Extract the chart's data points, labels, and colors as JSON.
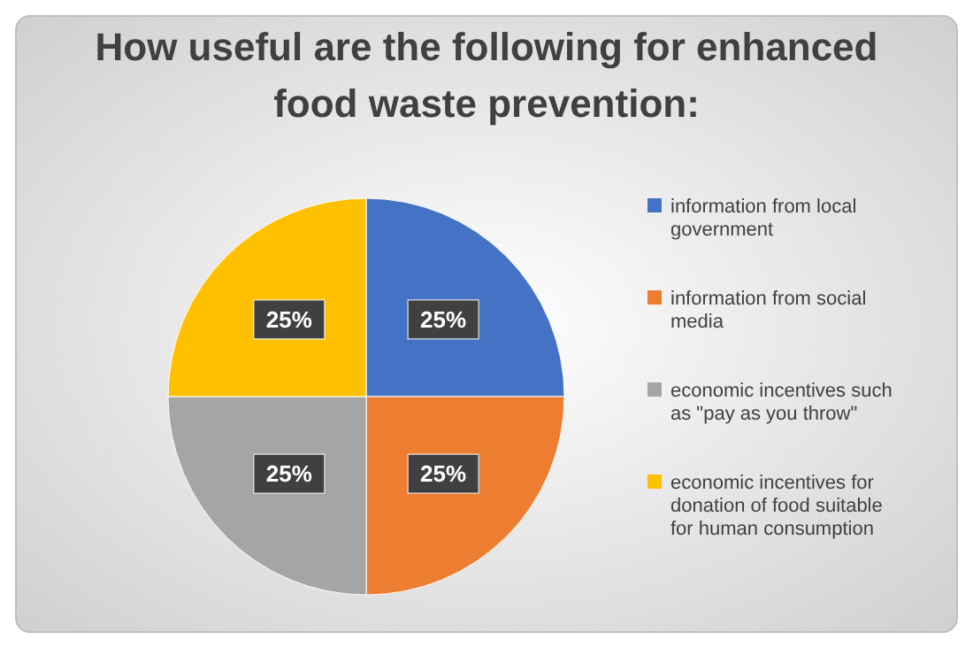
{
  "chart_data": {
    "type": "pie",
    "title": "How useful are the following for enhanced food waste prevention:",
    "categories": [
      "information from local government",
      "information from social media",
      "economic incentives such as \"pay as you throw\"",
      "economic incentives for donation of food suitable for human consumption"
    ],
    "values": [
      25,
      25,
      25,
      25
    ],
    "colors": [
      "#4472c4",
      "#ed7d31",
      "#a5a5a5",
      "#ffc000"
    ],
    "value_labels": [
      "25%",
      "25%",
      "25%",
      "25%"
    ],
    "legend": "right"
  }
}
